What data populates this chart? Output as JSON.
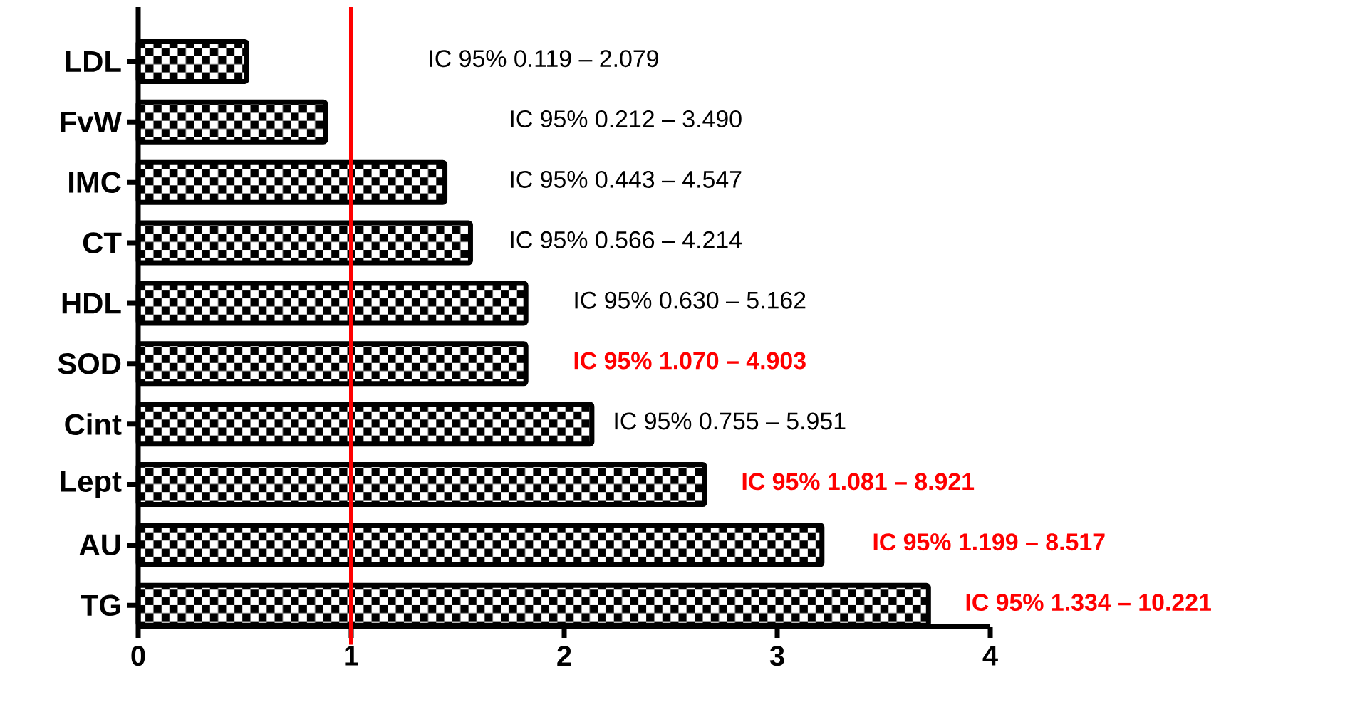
{
  "chart_data": {
    "type": "bar",
    "orientation": "horizontal",
    "categories": [
      "LDL",
      "FvW",
      "IMC",
      "CT",
      "HDL",
      "SOD",
      "Cint",
      "Lept",
      "AU",
      "TG"
    ],
    "values": [
      0.51,
      0.88,
      1.44,
      1.56,
      1.82,
      1.82,
      2.13,
      2.66,
      3.21,
      3.71
    ],
    "color": "#000000",
    "xlim": [
      0,
      4
    ],
    "xticks": [
      0,
      1,
      2,
      3,
      4
    ],
    "grid": false,
    "ref_lines": [
      {
        "axis": "x",
        "value": 1,
        "color": "#ff0000"
      }
    ],
    "annotations": [
      "IC 95% 0.119 – 2.079",
      "IC 95% 0.212 – 3.490",
      "IC 95% 0.443 –  4.547",
      "IC 95% 0.566 – 4.214",
      "IC 95% 0.630 – 5.162",
      "**IC 95% 1.070 – 4.903**",
      "IC 95% 0.755 – 5.951",
      "**IC 95% 1.081 – 8.921**",
      "**IC 95% 1.199 – 8.517**",
      "**IC 95% 1.334 – 10.221**"
    ]
  }
}
